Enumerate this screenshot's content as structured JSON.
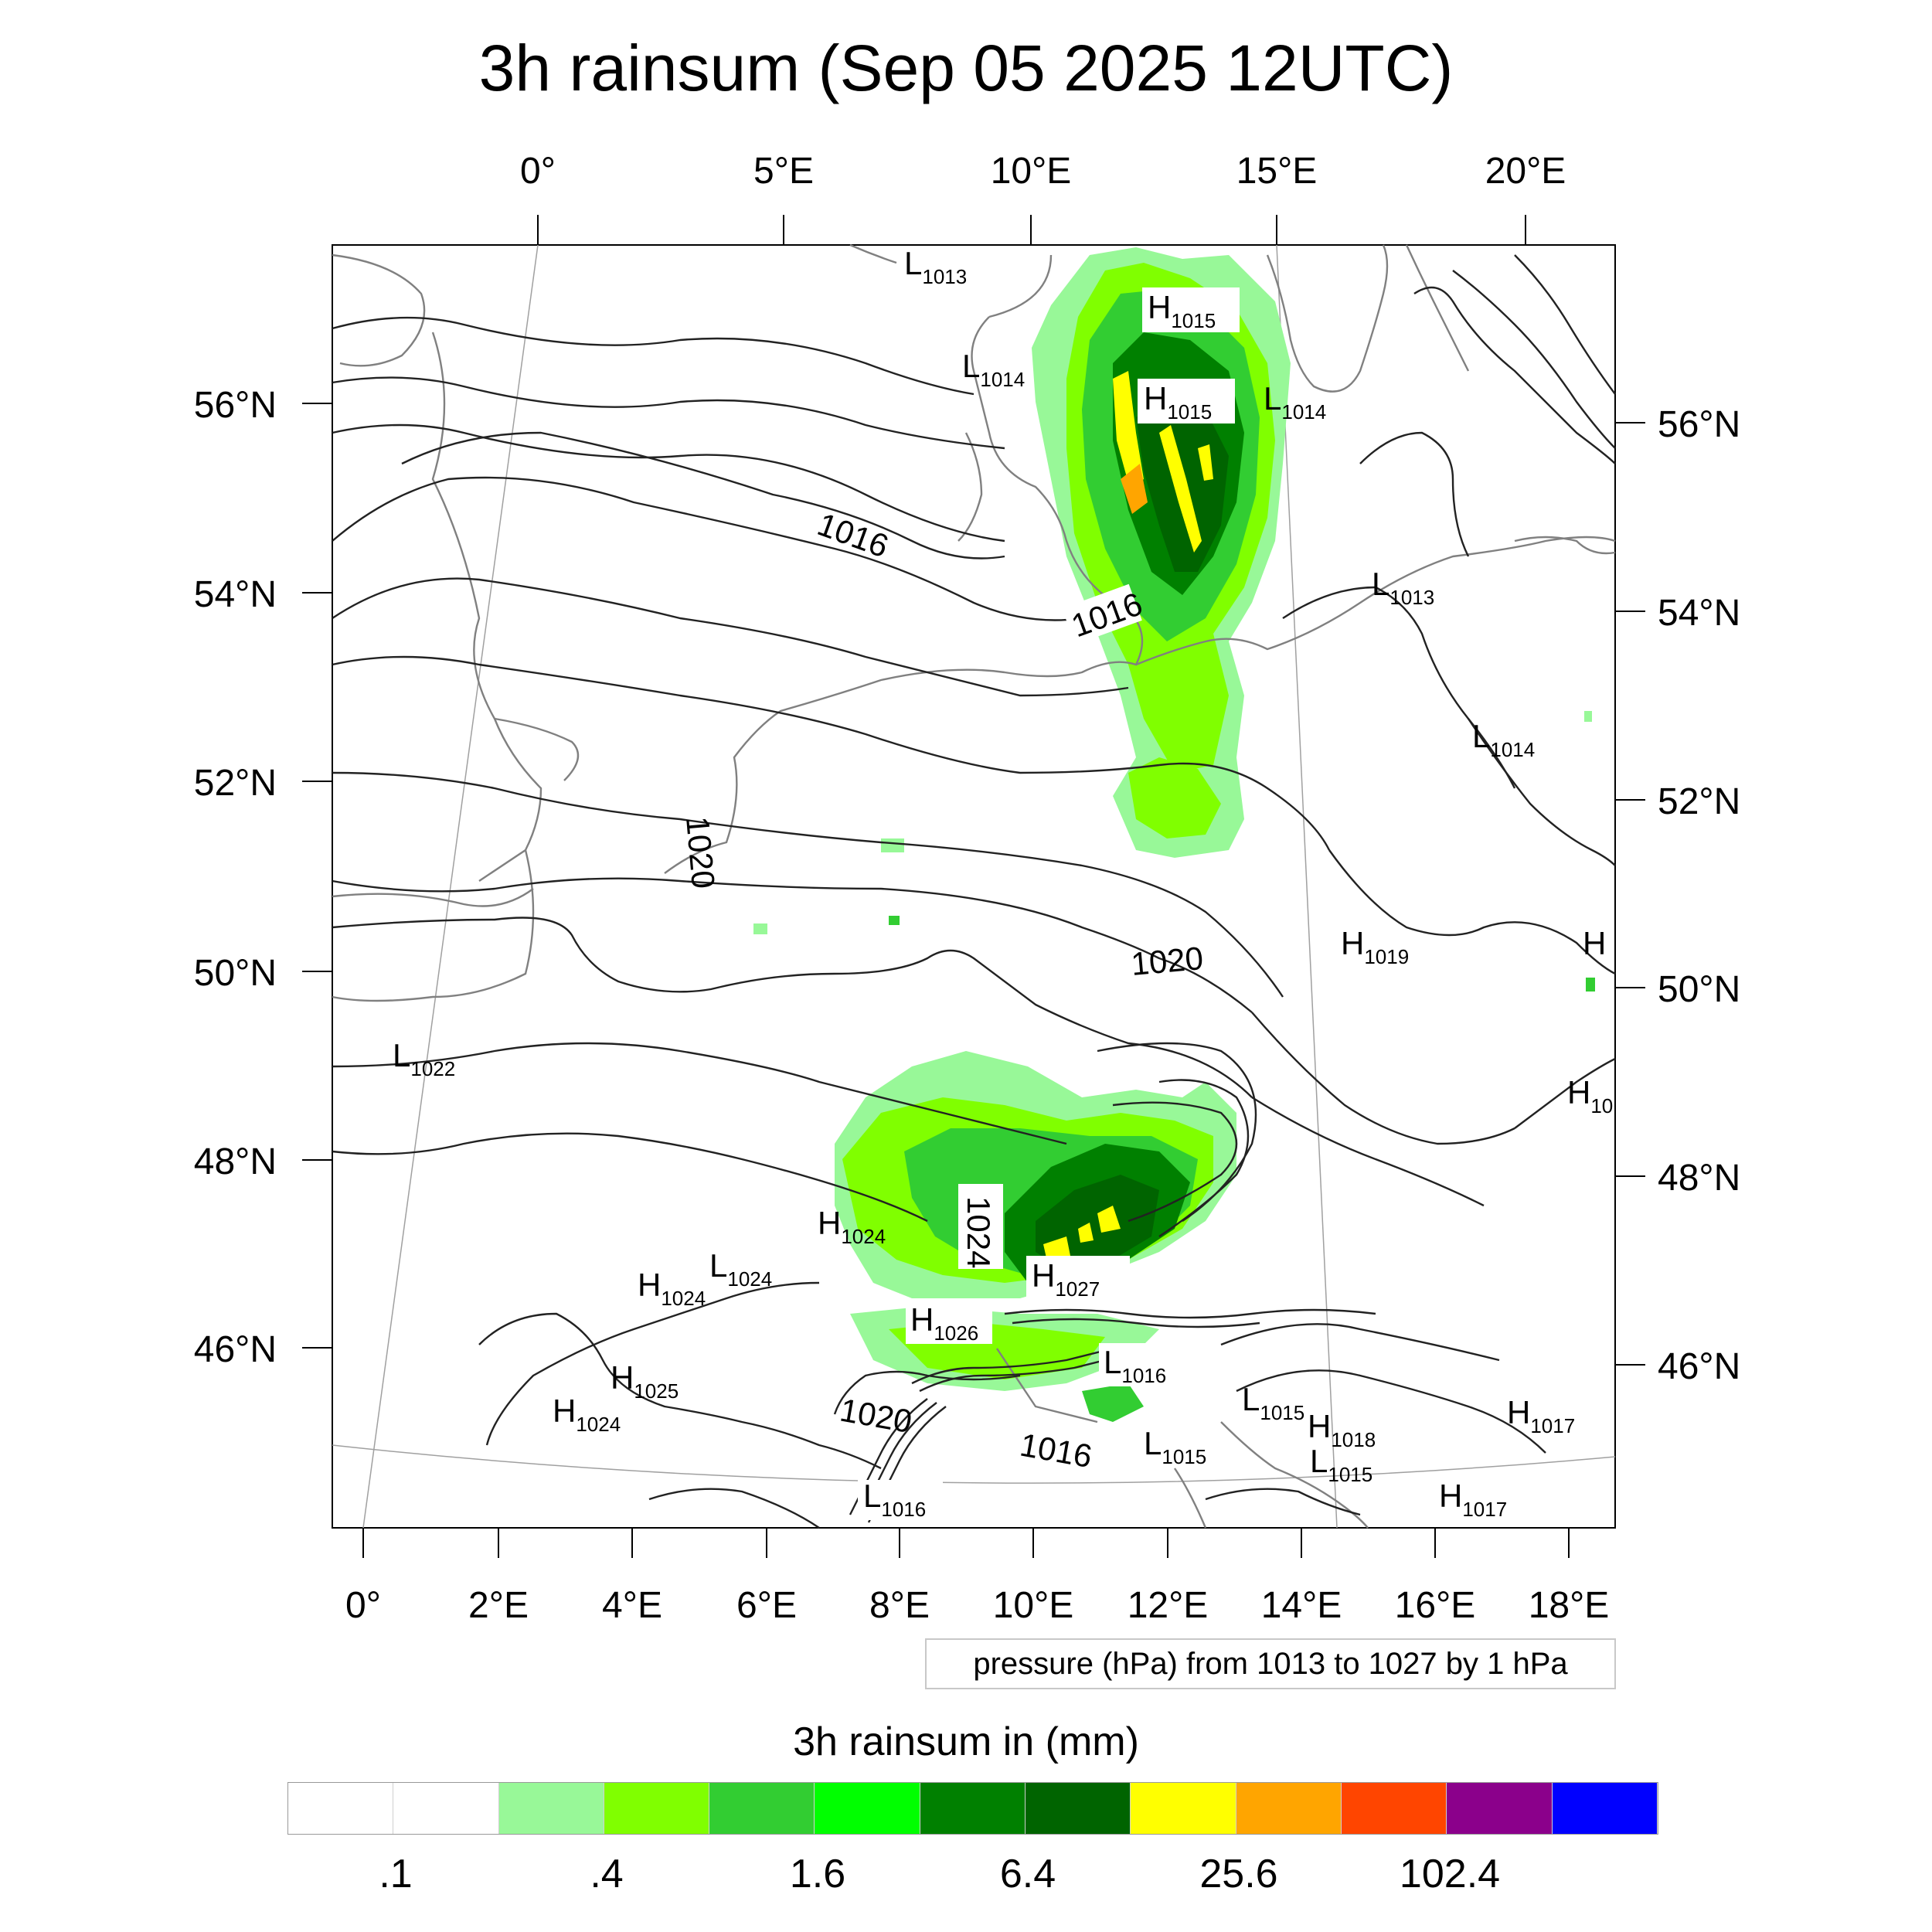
{
  "title": "3h rainsum (Sep 05 2025 12UTC)",
  "map": {
    "top_lon_labels": [
      "0°",
      "5°E",
      "10°E",
      "15°E",
      "20°E"
    ],
    "bottom_lon_labels": [
      "0°",
      "2°E",
      "4°E",
      "6°E",
      "8°E",
      "10°E",
      "12°E",
      "14°E",
      "16°E",
      "18°E"
    ],
    "left_lat_labels": [
      "56°N",
      "54°N",
      "52°N",
      "50°N",
      "48°N",
      "46°N"
    ],
    "right_lat_labels": [
      "56°N",
      "54°N",
      "52°N",
      "50°N",
      "48°N",
      "46°N"
    ],
    "contour_labels": [
      "1016",
      "1016",
      "1020",
      "1020",
      "1024",
      "1020",
      "1016"
    ],
    "pressure_centers": [
      {
        "kind": "L",
        "value": "1013"
      },
      {
        "kind": "H",
        "value": "1015"
      },
      {
        "kind": "L",
        "value": "1014"
      },
      {
        "kind": "H",
        "value": "1015"
      },
      {
        "kind": "L",
        "value": "1014"
      },
      {
        "kind": "L",
        "value": "1013"
      },
      {
        "kind": "L",
        "value": "1014"
      },
      {
        "kind": "H",
        "value": "1019"
      },
      {
        "kind": "H",
        "value": ""
      },
      {
        "kind": "L",
        "value": "1022"
      },
      {
        "kind": "H",
        "value": "10"
      },
      {
        "kind": "H",
        "value": "1024"
      },
      {
        "kind": "L",
        "value": "1024"
      },
      {
        "kind": "H",
        "value": "1024"
      },
      {
        "kind": "H",
        "value": "1027"
      },
      {
        "kind": "H",
        "value": "1026"
      },
      {
        "kind": "H",
        "value": "1025"
      },
      {
        "kind": "H",
        "value": "1024"
      },
      {
        "kind": "L",
        "value": "1016"
      },
      {
        "kind": "L",
        "value": "1015"
      },
      {
        "kind": "H",
        "value": "1018"
      },
      {
        "kind": "L",
        "value": "1015"
      },
      {
        "kind": "L",
        "value": "1015"
      },
      {
        "kind": "H",
        "value": "1017"
      },
      {
        "kind": "H",
        "value": "1017"
      },
      {
        "kind": "L",
        "value": "1016"
      }
    ]
  },
  "info_box": "pressure (hPa) from 1013 to 1027 by 1 hPa",
  "colorbar": {
    "title": "3h rainsum in (mm)",
    "colors": [
      "#ffffff",
      "#ffffff",
      "#98f898",
      "#80ff00",
      "#32cd32",
      "#00ff00",
      "#008000",
      "#006400",
      "#ffff00",
      "#ffa500",
      "#ff4500",
      "#8b008b",
      "#0000ff"
    ],
    "labels": [
      ".1",
      ".4",
      "1.6",
      "6.4",
      "25.6",
      "102.4"
    ],
    "boundaries": [
      0.1,
      0.2,
      0.4,
      0.8,
      1.6,
      3.2,
      6.4,
      12.8,
      25.6,
      51.2,
      102.4,
      204.8
    ]
  }
}
